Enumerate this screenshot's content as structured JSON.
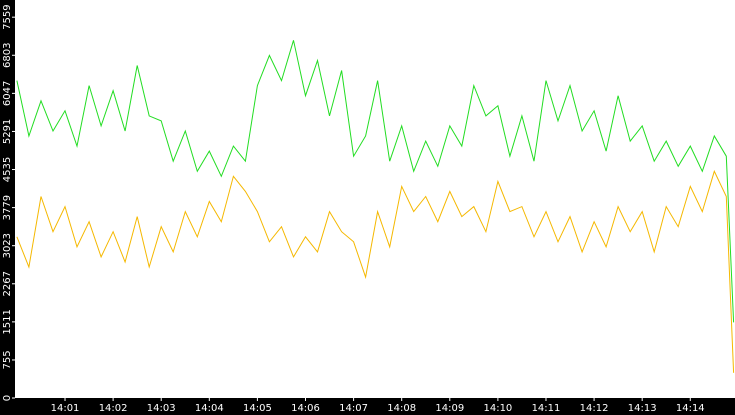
{
  "chart_data": {
    "type": "line",
    "x": [
      0,
      0.25,
      0.5,
      0.75,
      1,
      1.25,
      1.5,
      1.75,
      2,
      2.25,
      2.5,
      2.75,
      3,
      3.25,
      3.5,
      3.75,
      4,
      4.25,
      4.5,
      4.75,
      5,
      5.25,
      5.5,
      5.75,
      6,
      6.25,
      6.5,
      6.75,
      7,
      7.25,
      7.5,
      7.75,
      8,
      8.25,
      8.5,
      8.75,
      9,
      9.25,
      9.5,
      9.75,
      10,
      10.25,
      10.5,
      10.75,
      11,
      11.25,
      11.5,
      11.75,
      12,
      12.25,
      12.5,
      12.75,
      13,
      13.25,
      13.5,
      13.75,
      14,
      14.25,
      14.5,
      14.75,
      14.9
    ],
    "series": [
      {
        "color": "#22dd22",
        "values": [
          6300,
          5200,
          5900,
          5300,
          5700,
          5000,
          6200,
          5400,
          6100,
          5300,
          6600,
          5600,
          5500,
          4700,
          5300,
          4500,
          4900,
          4400,
          5000,
          4700,
          6200,
          6800,
          6300,
          7100,
          6000,
          6700,
          5600,
          6500,
          4800,
          5200,
          6300,
          4700,
          5400,
          4500,
          5100,
          4600,
          5400,
          5000,
          6200,
          5600,
          5800,
          4800,
          5600,
          4700,
          6300,
          5500,
          6200,
          5300,
          5700,
          4900,
          6000,
          5100,
          5400,
          4700,
          5100,
          4600,
          5000,
          4500,
          5200,
          4800,
          1500
        ]
      },
      {
        "color": "#f5b800",
        "values": [
          3200,
          2600,
          4000,
          3300,
          3800,
          3000,
          3500,
          2800,
          3300,
          2700,
          3600,
          2600,
          3400,
          2900,
          3700,
          3200,
          3900,
          3500,
          4400,
          4100,
          3700,
          3100,
          3400,
          2800,
          3200,
          2900,
          3700,
          3300,
          3100,
          2400,
          3700,
          3000,
          4200,
          3700,
          4000,
          3500,
          4100,
          3600,
          3800,
          3300,
          4300,
          3700,
          3800,
          3200,
          3700,
          3100,
          3600,
          2900,
          3500,
          3000,
          3800,
          3300,
          3700,
          2900,
          3800,
          3400,
          4200,
          3700,
          4500,
          4000,
          500
        ]
      }
    ],
    "xlim": [
      -0.04,
      14.93
    ],
    "xticks": [
      {
        "value": 1,
        "label": "14:01"
      },
      {
        "value": 2,
        "label": "14:02"
      },
      {
        "value": 3,
        "label": "14:03"
      },
      {
        "value": 4,
        "label": "14:04"
      },
      {
        "value": 5,
        "label": "14:05"
      },
      {
        "value": 6,
        "label": "14:06"
      },
      {
        "value": 7,
        "label": "14:07"
      },
      {
        "value": 8,
        "label": "14:08"
      },
      {
        "value": 9,
        "label": "14:09"
      },
      {
        "value": 10,
        "label": "14:10"
      },
      {
        "value": 11,
        "label": "14:11"
      },
      {
        "value": 12,
        "label": "14:12"
      },
      {
        "value": 13,
        "label": "14:13"
      },
      {
        "value": 14,
        "label": "14:14"
      }
    ],
    "ylim": [
      0,
      7900
    ],
    "yticks": [
      0,
      755,
      1511,
      2267,
      3023,
      3779,
      4535,
      5291,
      6047,
      6803,
      7559
    ]
  }
}
